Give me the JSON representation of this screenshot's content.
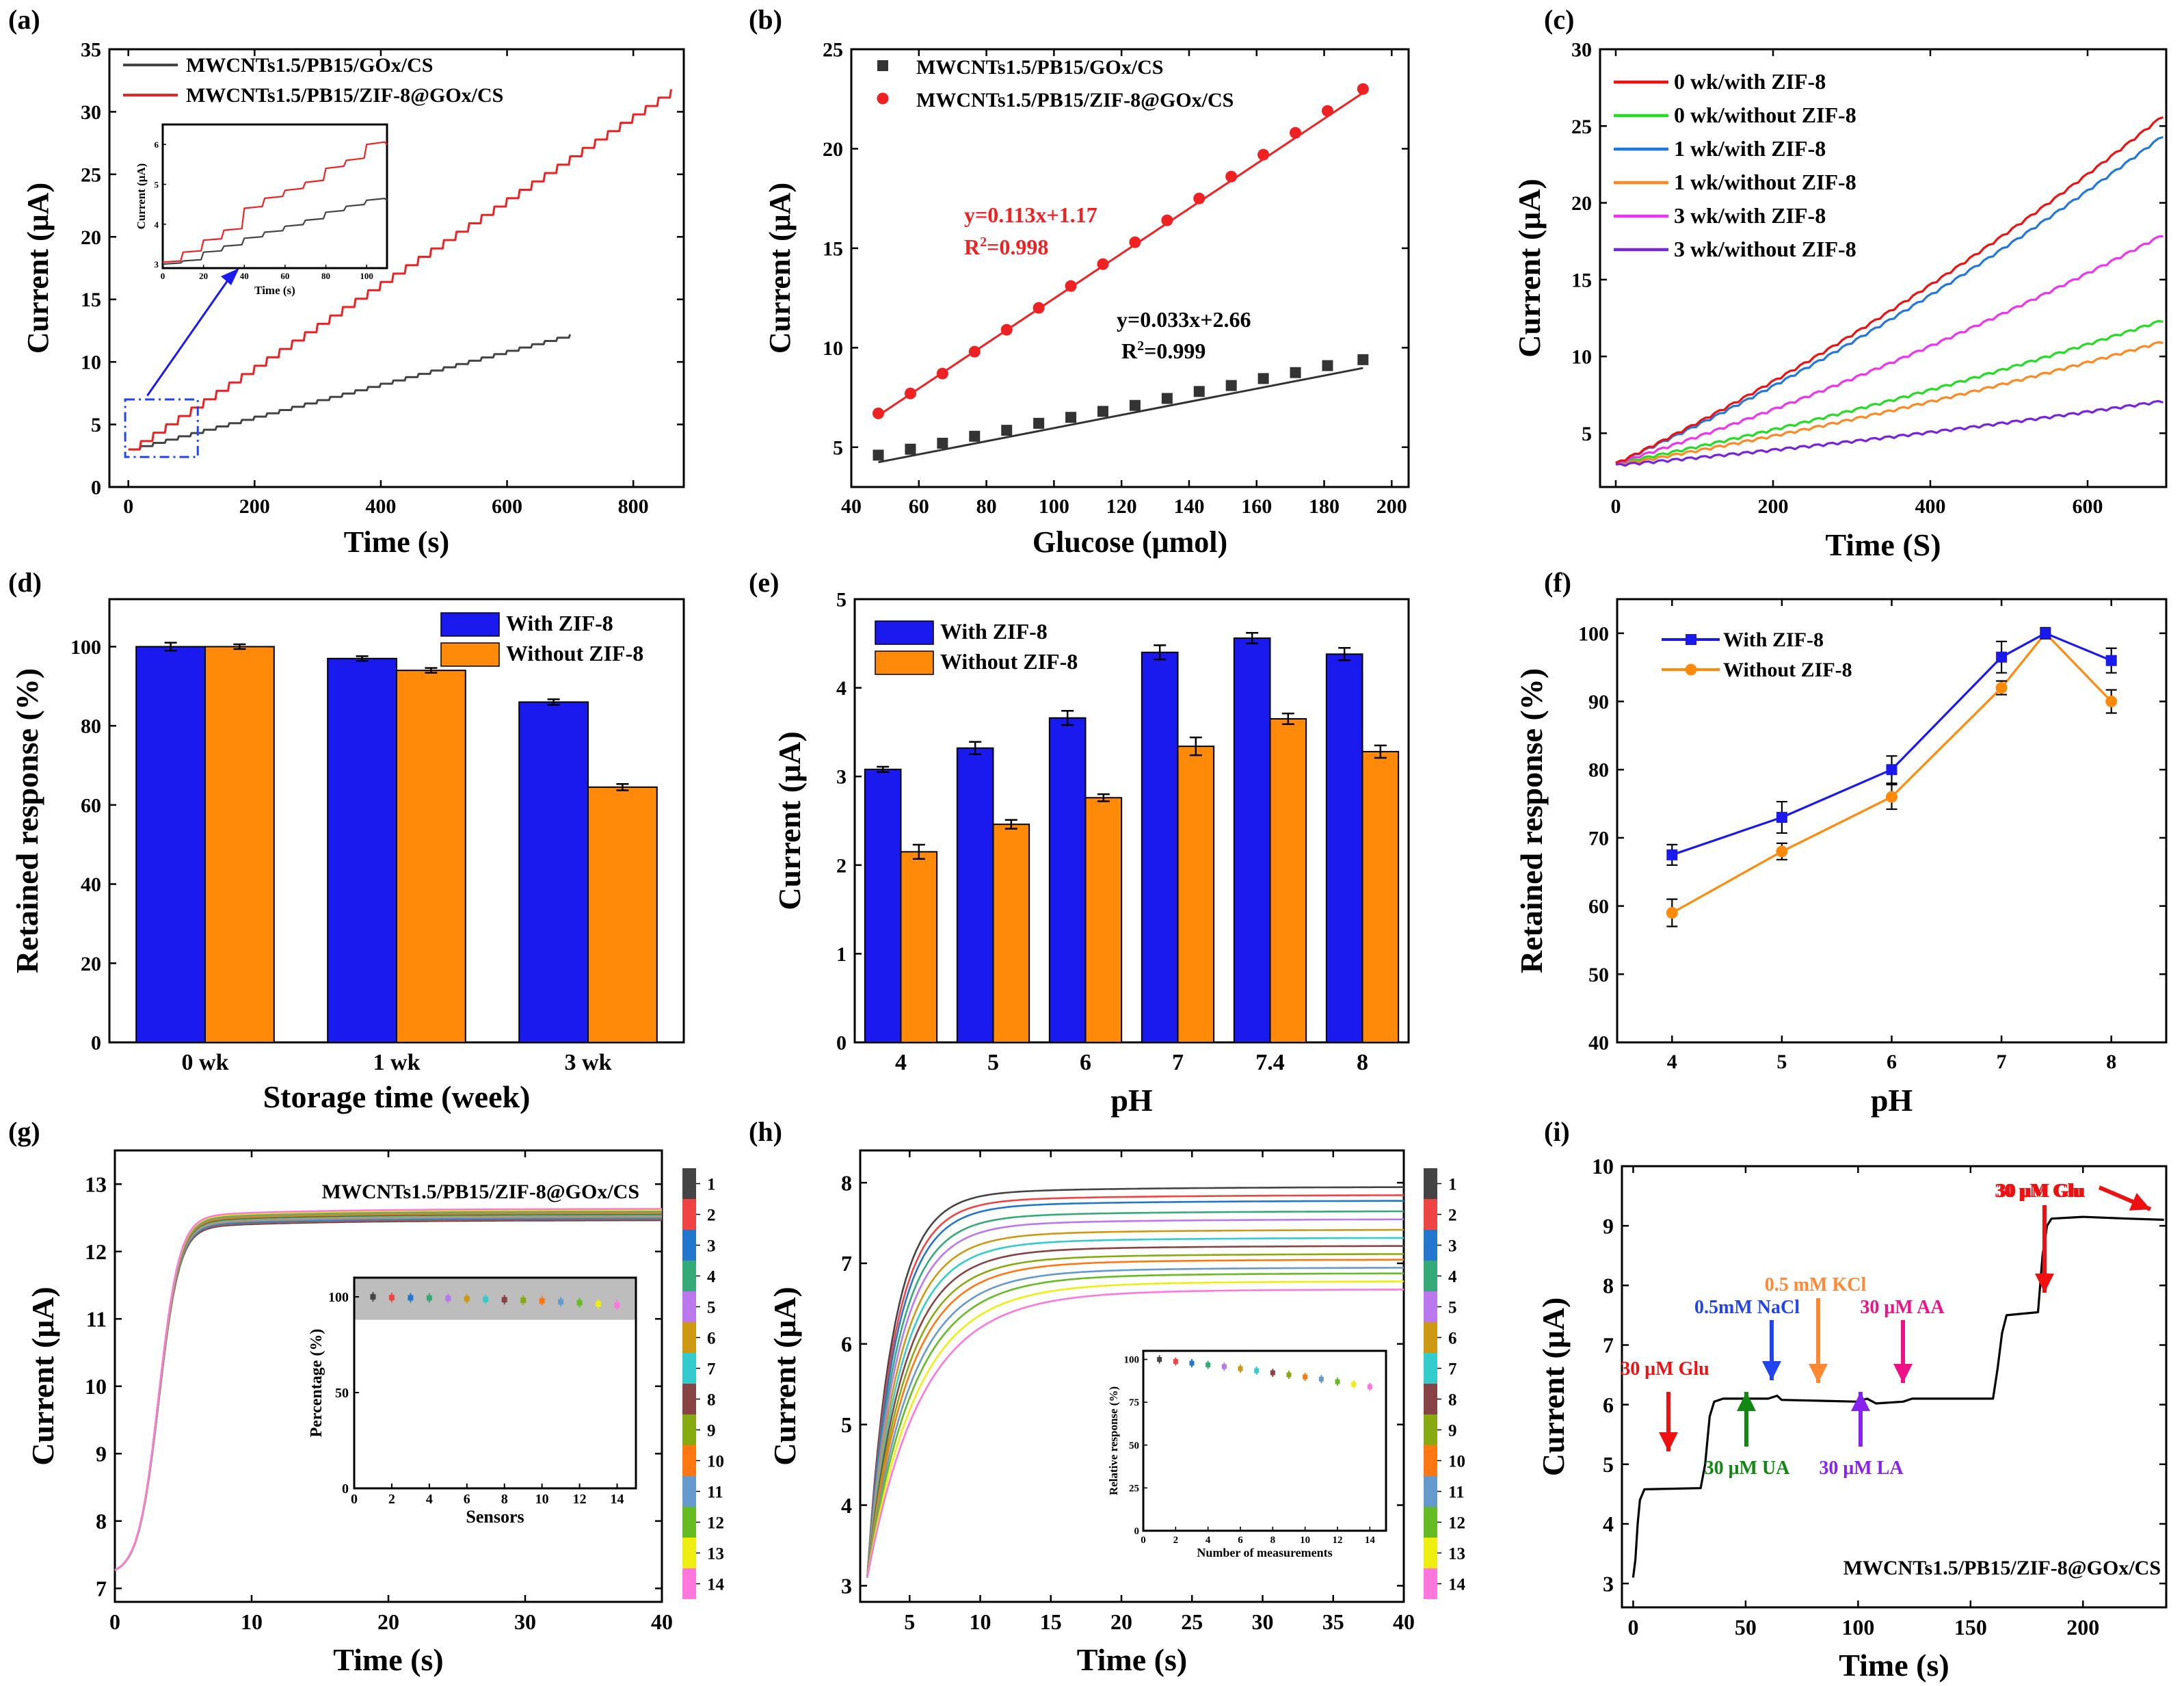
{
  "figure_title": "Nine-panel electrochemical glucose biosensor characterization",
  "chart_data": [
    {
      "panel": "(a)",
      "type": "line",
      "xlabel": "Time (s)",
      "ylabel": "Current (μA)",
      "xlim": [
        -30,
        880
      ],
      "ylim": [
        0,
        35
      ],
      "xticks": [
        0,
        200,
        400,
        600,
        800
      ],
      "yticks": [
        0,
        5,
        10,
        15,
        20,
        25,
        30,
        35
      ],
      "legend_position": "top-left",
      "series": [
        {
          "name": "MWCNTs1.5/PB15/GOx/CS",
          "color": "#444444",
          "x_end": 700,
          "y_start": 3.0,
          "y_end": 12.2,
          "step_period": 20
        },
        {
          "name": "MWCNTs1.5/PB15/ZIF-8@GOx/CS",
          "color": "#ee2222",
          "x_end": 860,
          "y_start": 3.0,
          "y_end": 31.8,
          "step_period": 20
        }
      ],
      "inset": {
        "xlabel": "Time (s)",
        "ylabel": "Current (μA)",
        "xticks": [
          0,
          20,
          40,
          60,
          80,
          100
        ],
        "yticks": [
          3,
          4,
          5,
          6
        ],
        "xlim": [
          0,
          110
        ],
        "ylim": [
          2.9,
          6.5
        ],
        "series": [
          {
            "name": "red",
            "color": "#ee2222",
            "steps": [
              [
                0,
                3.05
              ],
              [
                10,
                3.3
              ],
              [
                20,
                3.6
              ],
              [
                30,
                3.85
              ],
              [
                40,
                4.4
              ],
              [
                50,
                4.65
              ],
              [
                60,
                4.85
              ],
              [
                70,
                5.05
              ],
              [
                80,
                5.4
              ],
              [
                90,
                5.6
              ],
              [
                100,
                6.0
              ],
              [
                110,
                6.0
              ]
            ]
          },
          {
            "name": "black",
            "color": "#444444",
            "steps": [
              [
                0,
                3.0
              ],
              [
                10,
                3.08
              ],
              [
                20,
                3.3
              ],
              [
                30,
                3.45
              ],
              [
                40,
                3.65
              ],
              [
                50,
                3.8
              ],
              [
                60,
                3.95
              ],
              [
                70,
                4.1
              ],
              [
                80,
                4.3
              ],
              [
                90,
                4.45
              ],
              [
                100,
                4.6
              ],
              [
                110,
                4.6
              ]
            ]
          }
        ]
      }
    },
    {
      "panel": "(b)",
      "type": "scatter",
      "xlabel": "Glucose (μmol)",
      "ylabel": "Current (μA)",
      "xlim": [
        40,
        205
      ],
      "ylim": [
        3,
        25
      ],
      "xticks": [
        40,
        60,
        80,
        100,
        120,
        140,
        160,
        180,
        200
      ],
      "yticks": [
        5,
        10,
        15,
        20,
        25
      ],
      "legend_position": "top-left",
      "series": [
        {
          "name": "MWCNTs1.5/PB15/GOx/CS",
          "marker": "square",
          "color": "#333333",
          "x": [
            48,
            57.5,
            67,
            76.5,
            86,
            95.5,
            105,
            114.5,
            124,
            133.5,
            143,
            152.5,
            162,
            171.5,
            181,
            191.5
          ],
          "y": [
            4.6,
            4.9,
            5.2,
            5.55,
            5.85,
            6.2,
            6.5,
            6.8,
            7.1,
            7.45,
            7.8,
            8.1,
            8.45,
            8.75,
            9.1,
            9.4
          ],
          "fit": {
            "slope": 0.033,
            "intercept": 2.66
          }
        },
        {
          "name": "MWCNTs1.5/PB15/ZIF-8@GOx/CS",
          "marker": "circle",
          "color": "#ee2222",
          "x": [
            48,
            57.5,
            67,
            76.5,
            86,
            95.5,
            105,
            114.5,
            124,
            133.5,
            143,
            152.5,
            162,
            171.5,
            181,
            191.5
          ],
          "y": [
            6.7,
            7.7,
            8.7,
            9.8,
            10.9,
            12.0,
            13.1,
            14.2,
            15.3,
            16.4,
            17.5,
            18.6,
            19.7,
            20.8,
            21.9,
            23.0
          ],
          "fit": {
            "slope": 0.113,
            "intercept": 1.17
          }
        }
      ],
      "annotations": [
        {
          "text": "y=0.113x+1.17",
          "sub": "R",
          "sup": "2",
          "r2": "=0.998",
          "color": "#ee2222"
        },
        {
          "text": "y=0.033x+2.66",
          "sub": "R",
          "sup": "2",
          "r2": "=0.999",
          "color": "#000000"
        }
      ]
    },
    {
      "panel": "(c)",
      "type": "line",
      "xlabel": "Time (S)",
      "ylabel": "Current (μA)",
      "xlim": [
        -20,
        700
      ],
      "ylim": [
        1.5,
        30
      ],
      "xticks": [
        0,
        200,
        400,
        600
      ],
      "yticks": [
        5,
        10,
        15,
        20,
        25,
        30
      ],
      "legend_position": "top-left",
      "series": [
        {
          "name": "0 wk/with ZIF-8",
          "color": "#ee1111",
          "y_start": 3.0,
          "y_end": 25.8
        },
        {
          "name": "0 wk/without ZIF-8",
          "color": "#22dd22",
          "y_start": 3.0,
          "y_end": 12.4
        },
        {
          "name": "1 wk/with ZIF-8",
          "color": "#2277dd",
          "y_start": 3.0,
          "y_end": 24.5
        },
        {
          "name": "1 wk/without ZIF-8",
          "color": "#ff8822",
          "y_start": 2.9,
          "y_end": 11.0
        },
        {
          "name": "3 wk/with ZIF-8",
          "color": "#ee33ee",
          "y_start": 3.0,
          "y_end": 18.0
        },
        {
          "name": "3 wk/without ZIF-8",
          "color": "#7722dd",
          "y_start": 2.9,
          "y_end": 7.1
        }
      ]
    },
    {
      "panel": "(d)",
      "type": "bar",
      "xlabel": "Storage time (week)",
      "ylabel": "Retained response (%)",
      "ylim": [
        0,
        112
      ],
      "yticks": [
        0,
        20,
        40,
        60,
        80,
        100
      ],
      "categories": [
        "0 wk",
        "1 wk",
        "3 wk"
      ],
      "legend_position": "top-right",
      "series": [
        {
          "name": "With ZIF-8",
          "color": "#1a1aee",
          "values": [
            100,
            97,
            86
          ],
          "errors": [
            1.0,
            0.6,
            0.7
          ]
        },
        {
          "name": "Without ZIF-8",
          "color": "#ff8a0a",
          "values": [
            100,
            94,
            64.5
          ],
          "errors": [
            0.6,
            0.6,
            0.8
          ]
        }
      ]
    },
    {
      "panel": "(e)",
      "type": "bar",
      "xlabel": "pH",
      "ylabel": "Current (μA)",
      "ylim": [
        0,
        5
      ],
      "yticks": [
        0,
        1,
        2,
        3,
        4,
        5
      ],
      "categories": [
        "4",
        "5",
        "6",
        "7",
        "7.4",
        "8"
      ],
      "legend_position": "top-left",
      "series": [
        {
          "name": "With ZIF-8",
          "color": "#1a1aee",
          "values": [
            3.08,
            3.32,
            3.66,
            4.4,
            4.56,
            4.38
          ],
          "errors": [
            0.03,
            0.07,
            0.08,
            0.08,
            0.06,
            0.07
          ]
        },
        {
          "name": "Without ZIF-8",
          "color": "#ff8a0a",
          "values": [
            2.15,
            2.46,
            2.76,
            3.34,
            3.65,
            3.28
          ],
          "errors": [
            0.08,
            0.05,
            0.04,
            0.1,
            0.06,
            0.07
          ]
        }
      ]
    },
    {
      "panel": "(f)",
      "type": "line",
      "xlabel": "pH",
      "ylabel": "Retained response (%)",
      "xlim": [
        3.5,
        8.5
      ],
      "ylim": [
        40,
        105
      ],
      "xticks": [
        4,
        5,
        6,
        7,
        8
      ],
      "yticks": [
        40,
        50,
        60,
        70,
        80,
        90,
        100
      ],
      "legend_position": "top-left",
      "series": [
        {
          "name": "With ZIF-8",
          "color": "#1a1aee",
          "marker": "square",
          "x": [
            4,
            5,
            6,
            7,
            7.4,
            8
          ],
          "y": [
            67.5,
            73,
            80,
            96.5,
            100,
            96
          ],
          "errors": [
            1.5,
            2.3,
            2.0,
            2.3,
            0.8,
            1.8
          ]
        },
        {
          "name": "Without ZIF-8",
          "color": "#ff8a0a",
          "marker": "circle",
          "x": [
            4,
            5,
            6,
            7,
            7.4,
            8
          ],
          "y": [
            59,
            68,
            76,
            92,
            100,
            90
          ],
          "errors": [
            2.0,
            1.2,
            1.8,
            1.0,
            0.5,
            1.7
          ]
        }
      ]
    },
    {
      "panel": "(g)",
      "type": "line",
      "xlabel": "Time (s)",
      "ylabel": "Current (μA)",
      "xlim": [
        0,
        40
      ],
      "ylim": [
        6.8,
        13.5
      ],
      "xticks": [
        0,
        10,
        20,
        30,
        40
      ],
      "yticks": [
        7,
        8,
        9,
        10,
        11,
        12,
        13
      ],
      "annotation": "MWCNTs1.5/PB15/ZIF-8@GOx/CS",
      "n_curves": 14,
      "y_start": 7.2,
      "plateau_center": 12.55,
      "plateau_spread": 0.14,
      "colorbar_labels": [
        "1",
        "2",
        "3",
        "4",
        "5",
        "6",
        "7",
        "8",
        "9",
        "10",
        "11",
        "12",
        "13",
        "14"
      ],
      "inset": {
        "xlabel": "Sensors",
        "ylabel": "Percentage (%)",
        "xticks": [
          0,
          2,
          4,
          6,
          8,
          10,
          12,
          14
        ],
        "yticks": [
          0,
          50,
          100
        ],
        "xlim": [
          0,
          15
        ],
        "ylim": [
          0,
          110
        ],
        "x": [
          1,
          2,
          3,
          4,
          5,
          6,
          7,
          8,
          9,
          10,
          11,
          12,
          13,
          14
        ],
        "y": [
          100,
          99.6,
          99.5,
          99.4,
          99.2,
          99,
          98.7,
          98.5,
          98.2,
          97.9,
          97.4,
          96.9,
          96.3,
          95.6
        ],
        "shaded_band": [
          88,
          110
        ]
      }
    },
    {
      "panel": "(h)",
      "type": "line",
      "xlabel": "Time (s)",
      "ylabel": "Current (μA)",
      "xlim": [
        1.5,
        40
      ],
      "ylim": [
        2.8,
        8.4
      ],
      "xticks": [
        5,
        10,
        15,
        20,
        25,
        30,
        35,
        40
      ],
      "yticks": [
        3,
        4,
        5,
        6,
        7,
        8
      ],
      "n_curves": 14,
      "plateaus": [
        7.95,
        7.85,
        7.78,
        7.65,
        7.55,
        7.42,
        7.32,
        7.22,
        7.12,
        7.05,
        6.95,
        6.88,
        6.78,
        6.68
      ],
      "colorbar_labels": [
        "1",
        "2",
        "3",
        "4",
        "5",
        "6",
        "7",
        "8",
        "9",
        "10",
        "11",
        "12",
        "13",
        "14"
      ],
      "inset": {
        "xlabel": "Number of measurements",
        "ylabel": "Relative  response (%)",
        "xticks": [
          0,
          2,
          4,
          6,
          8,
          10,
          12,
          14
        ],
        "yticks": [
          0,
          25,
          50,
          75,
          100
        ],
        "xlim": [
          0,
          15
        ],
        "ylim": [
          0,
          105
        ],
        "x": [
          1,
          2,
          3,
          4,
          5,
          6,
          7,
          8,
          9,
          10,
          11,
          12,
          13,
          14
        ],
        "y": [
          100,
          98.8,
          97.8,
          96.8,
          95.8,
          94.6,
          93.4,
          92.2,
          91.0,
          89.8,
          88.5,
          87.0,
          85.5,
          84.0
        ]
      }
    },
    {
      "panel": "(i)",
      "type": "line",
      "xlabel": "Time (s)",
      "ylabel": "Current (μA)",
      "xlim": [
        -5,
        237
      ],
      "ylim": [
        2.6,
        10
      ],
      "xticks": [
        0,
        50,
        100,
        150,
        200
      ],
      "yticks": [
        3,
        4,
        5,
        6,
        7,
        8,
        9,
        10
      ],
      "annotation": "MWCNTs1.5/PB15/ZIF-8@GOx/CS",
      "color": "#000000",
      "points": [
        [
          0,
          3.1
        ],
        [
          1,
          3.4
        ],
        [
          2,
          4.0
        ],
        [
          3,
          4.4
        ],
        [
          5,
          4.58
        ],
        [
          30,
          4.6
        ],
        [
          32,
          5.0
        ],
        [
          34,
          5.8
        ],
        [
          36,
          6.05
        ],
        [
          40,
          6.1
        ],
        [
          60,
          6.1
        ],
        [
          64,
          6.15
        ],
        [
          66,
          6.08
        ],
        [
          100,
          6.05
        ],
        [
          104,
          6.1
        ],
        [
          108,
          6.02
        ],
        [
          120,
          6.05
        ],
        [
          124,
          6.1
        ],
        [
          160,
          6.1
        ],
        [
          162,
          6.6
        ],
        [
          164,
          7.2
        ],
        [
          166,
          7.5
        ],
        [
          180,
          7.55
        ],
        [
          182,
          8.5
        ],
        [
          184,
          9.0
        ],
        [
          186,
          9.12
        ],
        [
          200,
          9.15
        ],
        [
          220,
          9.12
        ],
        [
          236,
          9.1
        ]
      ],
      "arrows": [
        {
          "label": "30 μM Glu",
          "color": "#ee1111",
          "x": 20,
          "dir": "down"
        },
        {
          "label": "30 μM UA",
          "color": "#118811",
          "x": 53,
          "dir": "up"
        },
        {
          "label": "0.5mM NaCl",
          "color": "#2244ee",
          "x": 65,
          "dir": "down"
        },
        {
          "label": "0.5 mM KCl",
          "color": "#ff8833",
          "x": 84,
          "dir": "down"
        },
        {
          "label": "30 μM LA",
          "color": "#8822ee",
          "x": 102,
          "dir": "up"
        },
        {
          "label": "30 μM AA",
          "color": "#ee1188",
          "x": 121,
          "dir": "down"
        },
        {
          "label": "30 μM Glu",
          "color": "#ee1111",
          "x": 182,
          "dir": "down"
        },
        {
          "label": "30 μM Glu",
          "color": "#ee1111",
          "x": 213,
          "dir": "diag"
        }
      ]
    }
  ],
  "colorbar_colors": [
    "#444444",
    "#ee4444",
    "#2277cc",
    "#33aa77",
    "#bb77ee",
    "#cc9911",
    "#33cccc",
    "#884444",
    "#88aa11",
    "#ff7711",
    "#6699cc",
    "#66bb22",
    "#eeee11",
    "#ff77dd"
  ]
}
